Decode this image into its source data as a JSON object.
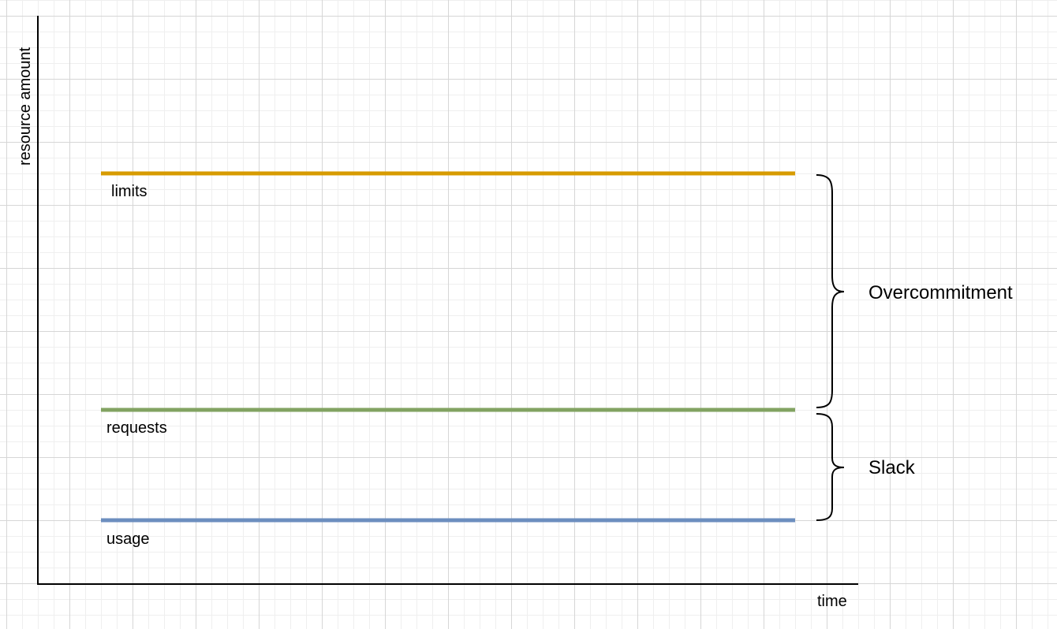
{
  "axes": {
    "x_label": "time",
    "y_label": "resource amount"
  },
  "lines": [
    {
      "id": "limits",
      "label": "limits",
      "color": "#d79b00",
      "level": 3
    },
    {
      "id": "requests",
      "label": "requests",
      "color": "#82a362",
      "level": 2
    },
    {
      "id": "usage",
      "label": "usage",
      "color": "#6c8ebf",
      "level": 1
    }
  ],
  "braces": [
    {
      "id": "overcommitment",
      "label": "Overcommitment",
      "from": "requests",
      "to": "limits"
    },
    {
      "id": "slack",
      "label": "Slack",
      "from": "usage",
      "to": "requests"
    }
  ],
  "colors": {
    "axis": "#000000",
    "grid_major": "#d6d6d6",
    "grid_minor": "#efefef"
  }
}
